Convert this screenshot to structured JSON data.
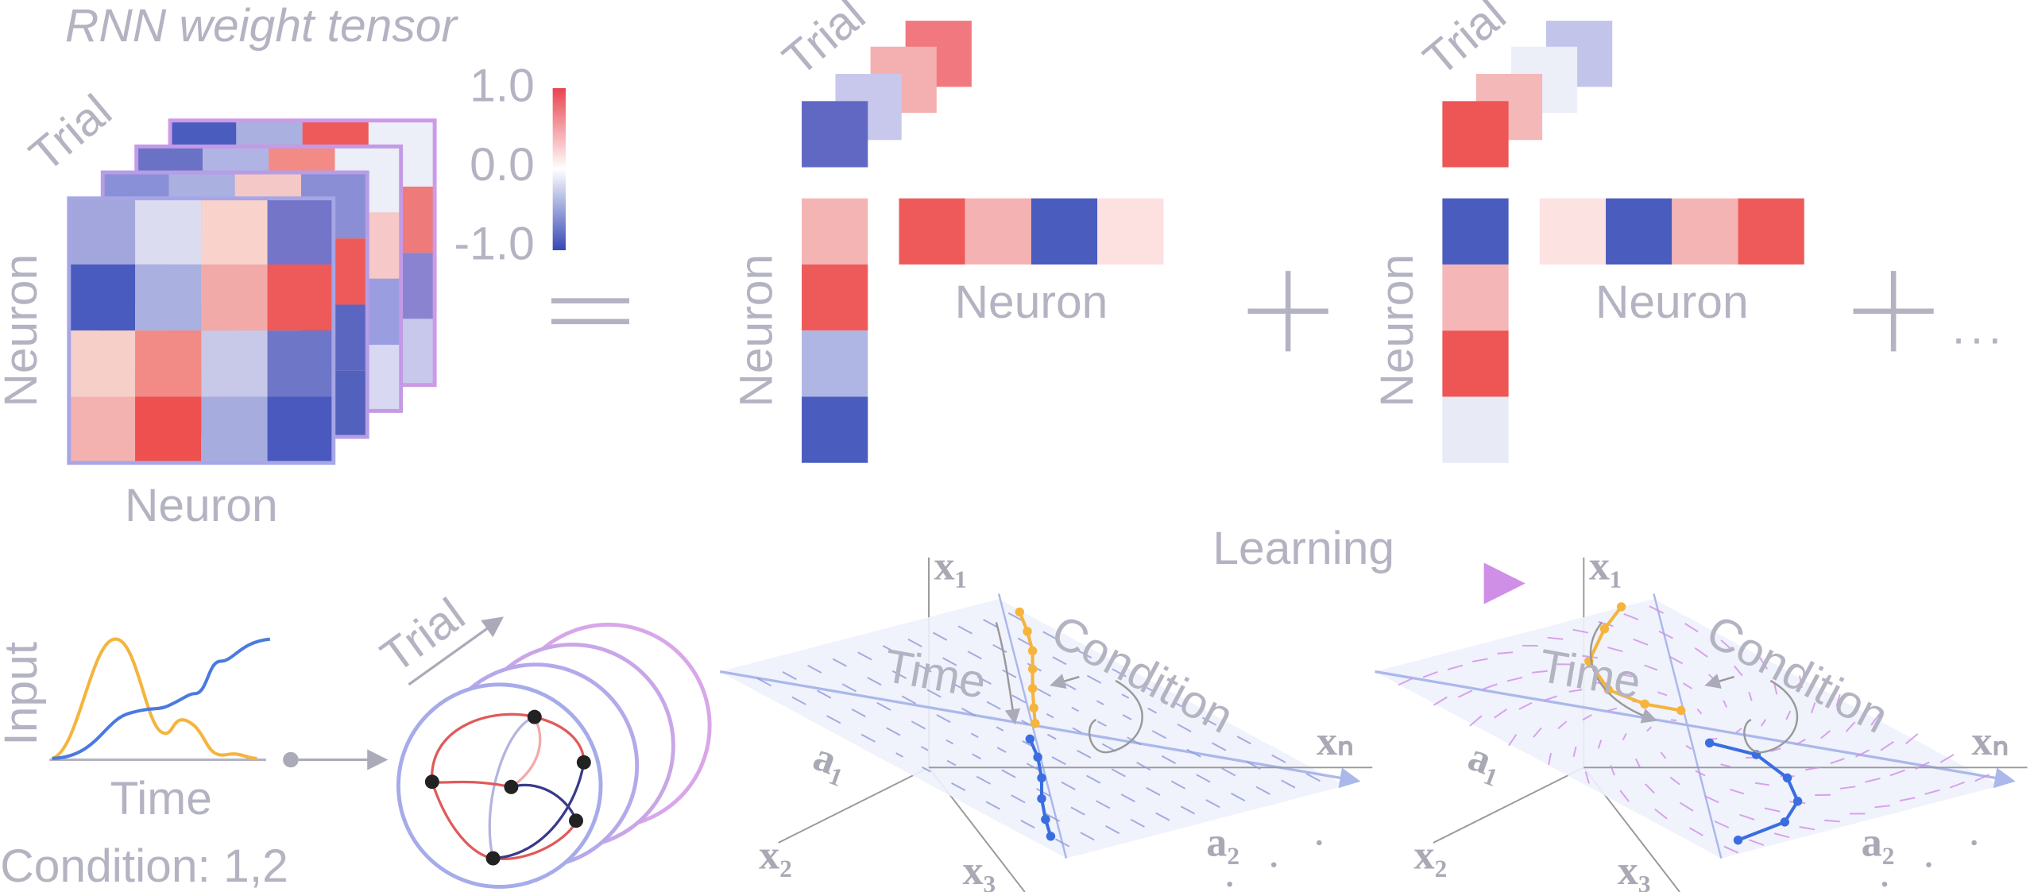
{
  "tensor": {
    "title": "RNN weight tensor",
    "trial_label": "Trial",
    "row_label": "Neuron",
    "col_label": "Neuron"
  },
  "colorbar": {
    "ticks": [
      "1.0",
      "0.0",
      "-1.0"
    ]
  },
  "components": [
    {
      "trial_label": "Trial",
      "row_label": "Neuron",
      "col_label": "Neuron"
    },
    {
      "trial_label": "Trial",
      "row_label": "Neuron",
      "col_label": "Neuron"
    }
  ],
  "ellipsis": "...",
  "input_panel": {
    "y_label": "Input",
    "x_label": "Time",
    "condition": "Condition: 1,2"
  },
  "rnn_panel": {
    "trial_label": "Trial"
  },
  "dynamics": {
    "arrow_label": "Learning",
    "panels": [
      {
        "x1": "x₁",
        "time": "Time",
        "condition": "Condition",
        "xn": "xₙ",
        "a1": "a₁",
        "x2": "x₂",
        "x3": "x₃",
        "a2": "a₂"
      },
      {
        "x1": "x₁",
        "time": "Time",
        "condition": "Condition",
        "xn": "xₙ",
        "a1": "a₁",
        "x2": "x₂",
        "x3": "x₃",
        "a2": "a₂"
      }
    ]
  }
}
